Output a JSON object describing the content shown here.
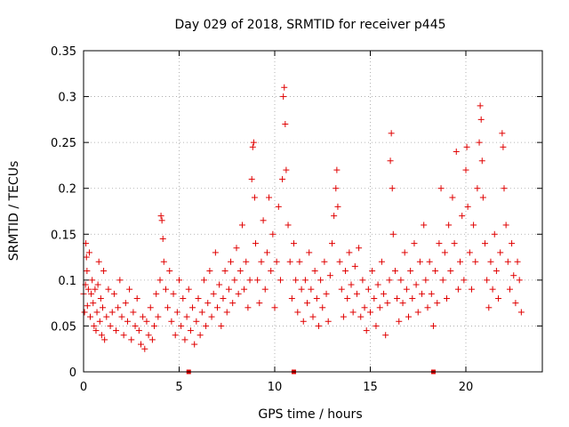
{
  "chart_data": {
    "type": "scatter",
    "title": "Day 029 of 2018, SRMTID for receiver p445",
    "xlabel": "GPS time / hours",
    "ylabel": "SRMTID / TECUs",
    "xlim": [
      0,
      24
    ],
    "ylim": [
      0,
      0.35
    ],
    "xticks": [
      0,
      5,
      10,
      15,
      20
    ],
    "yticks": [
      0,
      0.05,
      0.1,
      0.15,
      0.2,
      0.25,
      0.3,
      0.35
    ],
    "ytick_labels": [
      "0",
      "0.05",
      "0.1",
      "0.15",
      "0.2",
      "0.25",
      "0.3",
      "0.35"
    ],
    "grid": true,
    "marker": "+",
    "series_color": "#e00000",
    "gap_markers_x": [
      5.5,
      11.0,
      18.3
    ],
    "series": [
      {
        "name": "SRMTID",
        "points": [
          [
            0.0,
            0.085
          ],
          [
            0.05,
            0.065
          ],
          [
            0.1,
            0.095
          ],
          [
            0.12,
            0.14
          ],
          [
            0.15,
            0.125
          ],
          [
            0.18,
            0.11
          ],
          [
            0.2,
            0.072
          ],
          [
            0.25,
            0.09
          ],
          [
            0.3,
            0.13
          ],
          [
            0.35,
            0.06
          ],
          [
            0.4,
            0.085
          ],
          [
            0.45,
            0.1
          ],
          [
            0.5,
            0.075
          ],
          [
            0.55,
            0.05
          ],
          [
            0.6,
            0.09
          ],
          [
            0.65,
            0.045
          ],
          [
            0.7,
            0.065
          ],
          [
            0.75,
            0.095
          ],
          [
            0.8,
            0.12
          ],
          [
            0.85,
            0.055
          ],
          [
            0.9,
            0.08
          ],
          [
            0.95,
            0.04
          ],
          [
            1.0,
            0.07
          ],
          [
            1.05,
            0.11
          ],
          [
            1.1,
            0.035
          ],
          [
            1.2,
            0.06
          ],
          [
            1.3,
            0.09
          ],
          [
            1.4,
            0.05
          ],
          [
            1.5,
            0.065
          ],
          [
            1.6,
            0.085
          ],
          [
            1.7,
            0.045
          ],
          [
            1.8,
            0.07
          ],
          [
            1.9,
            0.1
          ],
          [
            2.0,
            0.06
          ],
          [
            2.1,
            0.04
          ],
          [
            2.2,
            0.075
          ],
          [
            2.3,
            0.055
          ],
          [
            2.4,
            0.09
          ],
          [
            2.5,
            0.035
          ],
          [
            2.6,
            0.065
          ],
          [
            2.7,
            0.05
          ],
          [
            2.8,
            0.08
          ],
          [
            2.9,
            0.045
          ],
          [
            3.0,
            0.03
          ],
          [
            3.1,
            0.06
          ],
          [
            3.2,
            0.025
          ],
          [
            3.3,
            0.055
          ],
          [
            3.4,
            0.04
          ],
          [
            3.5,
            0.07
          ],
          [
            3.6,
            0.035
          ],
          [
            3.7,
            0.05
          ],
          [
            3.8,
            0.085
          ],
          [
            3.9,
            0.06
          ],
          [
            4.0,
            0.1
          ],
          [
            4.05,
            0.17
          ],
          [
            4.1,
            0.165
          ],
          [
            4.15,
            0.145
          ],
          [
            4.2,
            0.12
          ],
          [
            4.3,
            0.09
          ],
          [
            4.4,
            0.07
          ],
          [
            4.5,
            0.11
          ],
          [
            4.6,
            0.055
          ],
          [
            4.7,
            0.085
          ],
          [
            4.8,
            0.04
          ],
          [
            4.9,
            0.065
          ],
          [
            5.0,
            0.1
          ],
          [
            5.1,
            0.05
          ],
          [
            5.2,
            0.08
          ],
          [
            5.3,
            0.035
          ],
          [
            5.4,
            0.06
          ],
          [
            5.5,
            0.09
          ],
          [
            5.6,
            0.045
          ],
          [
            5.7,
            0.07
          ],
          [
            5.8,
            0.03
          ],
          [
            5.9,
            0.055
          ],
          [
            6.0,
            0.08
          ],
          [
            6.1,
            0.04
          ],
          [
            6.2,
            0.065
          ],
          [
            6.3,
            0.1
          ],
          [
            6.4,
            0.05
          ],
          [
            6.5,
            0.075
          ],
          [
            6.6,
            0.11
          ],
          [
            6.7,
            0.06
          ],
          [
            6.8,
            0.085
          ],
          [
            6.9,
            0.13
          ],
          [
            7.0,
            0.07
          ],
          [
            7.1,
            0.095
          ],
          [
            7.2,
            0.05
          ],
          [
            7.3,
            0.08
          ],
          [
            7.4,
            0.11
          ],
          [
            7.5,
            0.065
          ],
          [
            7.6,
            0.09
          ],
          [
            7.7,
            0.12
          ],
          [
            7.8,
            0.075
          ],
          [
            7.9,
            0.1
          ],
          [
            8.0,
            0.135
          ],
          [
            8.1,
            0.085
          ],
          [
            8.2,
            0.11
          ],
          [
            8.3,
            0.16
          ],
          [
            8.4,
            0.09
          ],
          [
            8.5,
            0.12
          ],
          [
            8.6,
            0.07
          ],
          [
            8.7,
            0.1
          ],
          [
            8.8,
            0.21
          ],
          [
            8.85,
            0.245
          ],
          [
            8.9,
            0.25
          ],
          [
            8.95,
            0.19
          ],
          [
            9.0,
            0.14
          ],
          [
            9.1,
            0.1
          ],
          [
            9.2,
            0.075
          ],
          [
            9.3,
            0.12
          ],
          [
            9.4,
            0.165
          ],
          [
            9.5,
            0.09
          ],
          [
            9.6,
            0.13
          ],
          [
            9.7,
            0.19
          ],
          [
            9.8,
            0.11
          ],
          [
            9.9,
            0.15
          ],
          [
            10.0,
            0.07
          ],
          [
            10.1,
            0.12
          ],
          [
            10.2,
            0.18
          ],
          [
            10.3,
            0.1
          ],
          [
            10.4,
            0.21
          ],
          [
            10.45,
            0.3
          ],
          [
            10.5,
            0.31
          ],
          [
            10.55,
            0.27
          ],
          [
            10.6,
            0.22
          ],
          [
            10.7,
            0.16
          ],
          [
            10.8,
            0.12
          ],
          [
            10.9,
            0.08
          ],
          [
            11.0,
            0.14
          ],
          [
            11.1,
            0.1
          ],
          [
            11.2,
            0.065
          ],
          [
            11.3,
            0.12
          ],
          [
            11.4,
            0.09
          ],
          [
            11.5,
            0.055
          ],
          [
            11.6,
            0.1
          ],
          [
            11.7,
            0.075
          ],
          [
            11.8,
            0.13
          ],
          [
            11.9,
            0.09
          ],
          [
            12.0,
            0.06
          ],
          [
            12.1,
            0.11
          ],
          [
            12.2,
            0.08
          ],
          [
            12.3,
            0.05
          ],
          [
            12.4,
            0.1
          ],
          [
            12.5,
            0.07
          ],
          [
            12.6,
            0.12
          ],
          [
            12.7,
            0.085
          ],
          [
            12.8,
            0.055
          ],
          [
            12.9,
            0.105
          ],
          [
            13.0,
            0.14
          ],
          [
            13.1,
            0.17
          ],
          [
            13.2,
            0.2
          ],
          [
            13.25,
            0.22
          ],
          [
            13.3,
            0.18
          ],
          [
            13.4,
            0.12
          ],
          [
            13.5,
            0.09
          ],
          [
            13.6,
            0.06
          ],
          [
            13.7,
            0.11
          ],
          [
            13.8,
            0.08
          ],
          [
            13.9,
            0.13
          ],
          [
            14.0,
            0.095
          ],
          [
            14.1,
            0.065
          ],
          [
            14.2,
            0.115
          ],
          [
            14.3,
            0.085
          ],
          [
            14.4,
            0.135
          ],
          [
            14.5,
            0.06
          ],
          [
            14.6,
            0.1
          ],
          [
            14.7,
            0.07
          ],
          [
            14.8,
            0.045
          ],
          [
            14.9,
            0.09
          ],
          [
            15.0,
            0.065
          ],
          [
            15.1,
            0.11
          ],
          [
            15.2,
            0.08
          ],
          [
            15.3,
            0.05
          ],
          [
            15.4,
            0.095
          ],
          [
            15.5,
            0.07
          ],
          [
            15.6,
            0.12
          ],
          [
            15.7,
            0.085
          ],
          [
            15.8,
            0.04
          ],
          [
            15.9,
            0.075
          ],
          [
            16.0,
            0.1
          ],
          [
            16.05,
            0.23
          ],
          [
            16.1,
            0.26
          ],
          [
            16.15,
            0.2
          ],
          [
            16.2,
            0.15
          ],
          [
            16.3,
            0.11
          ],
          [
            16.4,
            0.08
          ],
          [
            16.5,
            0.055
          ],
          [
            16.6,
            0.1
          ],
          [
            16.7,
            0.075
          ],
          [
            16.8,
            0.13
          ],
          [
            16.9,
            0.09
          ],
          [
            17.0,
            0.06
          ],
          [
            17.1,
            0.11
          ],
          [
            17.2,
            0.08
          ],
          [
            17.3,
            0.14
          ],
          [
            17.4,
            0.095
          ],
          [
            17.5,
            0.065
          ],
          [
            17.6,
            0.12
          ],
          [
            17.7,
            0.085
          ],
          [
            17.8,
            0.16
          ],
          [
            17.9,
            0.1
          ],
          [
            18.0,
            0.07
          ],
          [
            18.1,
            0.12
          ],
          [
            18.2,
            0.085
          ],
          [
            18.3,
            0.05
          ],
          [
            18.4,
            0.11
          ],
          [
            18.5,
            0.075
          ],
          [
            18.6,
            0.14
          ],
          [
            18.7,
            0.2
          ],
          [
            18.8,
            0.1
          ],
          [
            18.9,
            0.13
          ],
          [
            19.0,
            0.08
          ],
          [
            19.1,
            0.16
          ],
          [
            19.2,
            0.11
          ],
          [
            19.3,
            0.19
          ],
          [
            19.4,
            0.14
          ],
          [
            19.5,
            0.24
          ],
          [
            19.6,
            0.09
          ],
          [
            19.7,
            0.12
          ],
          [
            19.8,
            0.17
          ],
          [
            19.9,
            0.1
          ],
          [
            20.0,
            0.22
          ],
          [
            20.05,
            0.245
          ],
          [
            20.1,
            0.18
          ],
          [
            20.2,
            0.13
          ],
          [
            20.3,
            0.09
          ],
          [
            20.4,
            0.16
          ],
          [
            20.5,
            0.12
          ],
          [
            20.6,
            0.2
          ],
          [
            20.7,
            0.25
          ],
          [
            20.75,
            0.29
          ],
          [
            20.8,
            0.275
          ],
          [
            20.85,
            0.23
          ],
          [
            20.9,
            0.19
          ],
          [
            21.0,
            0.14
          ],
          [
            21.1,
            0.1
          ],
          [
            21.2,
            0.07
          ],
          [
            21.3,
            0.12
          ],
          [
            21.4,
            0.09
          ],
          [
            21.5,
            0.15
          ],
          [
            21.6,
            0.11
          ],
          [
            21.7,
            0.08
          ],
          [
            21.8,
            0.13
          ],
          [
            21.9,
            0.26
          ],
          [
            21.95,
            0.245
          ],
          [
            22.0,
            0.2
          ],
          [
            22.1,
            0.16
          ],
          [
            22.2,
            0.12
          ],
          [
            22.3,
            0.09
          ],
          [
            22.4,
            0.14
          ],
          [
            22.5,
            0.105
          ],
          [
            22.6,
            0.075
          ],
          [
            22.7,
            0.12
          ],
          [
            22.8,
            0.1
          ],
          [
            22.9,
            0.065
          ]
        ]
      }
    ]
  }
}
